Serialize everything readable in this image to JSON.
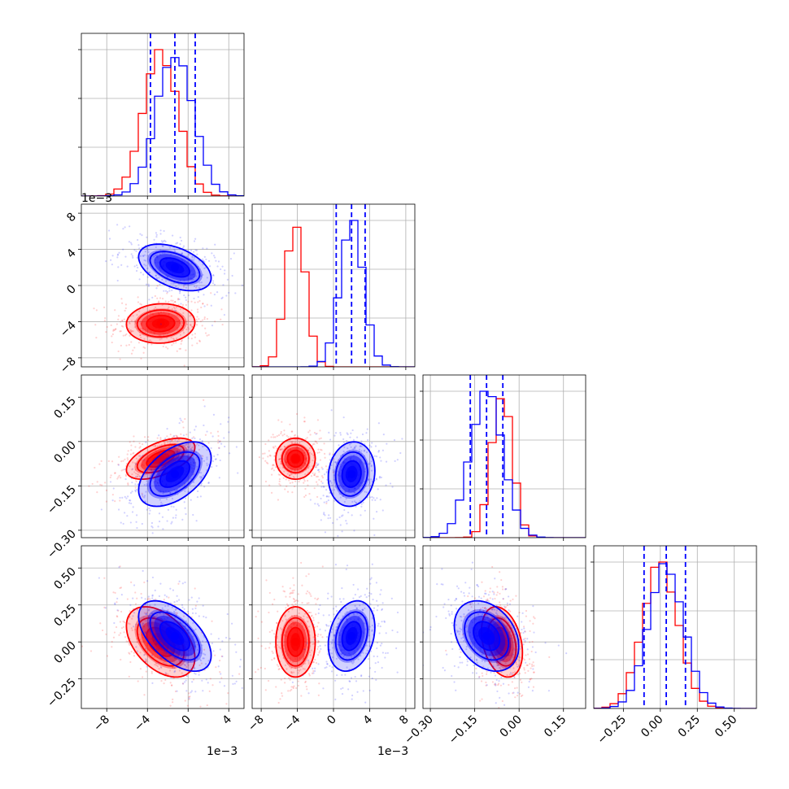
{
  "colors": {
    "red": "#ff0000",
    "blue": "#0000ff"
  },
  "chart_data": {
    "type": "corner",
    "grid": true,
    "offsets": {
      "x0": "1e−3",
      "y1": "1e−3",
      "x1": "1e−3"
    },
    "ticks": {
      "p0": [
        {
          "v": -0.008,
          "label": "−8"
        },
        {
          "v": -0.004,
          "label": "−4"
        },
        {
          "v": 0.0,
          "label": "0"
        },
        {
          "v": 0.004,
          "label": "4"
        }
      ],
      "p1": [
        {
          "v": -0.008,
          "label": "−8"
        },
        {
          "v": -0.004,
          "label": "−4"
        },
        {
          "v": 0.0,
          "label": "0"
        },
        {
          "v": 0.004,
          "label": "4"
        },
        {
          "v": 0.008,
          "label": "8"
        }
      ],
      "p2": [
        {
          "v": -0.3,
          "label": "−0.30"
        },
        {
          "v": -0.15,
          "label": "−0.15"
        },
        {
          "v": 0.0,
          "label": "0.00"
        },
        {
          "v": 0.15,
          "label": "0.15"
        }
      ],
      "p3": [
        {
          "v": -0.25,
          "label": "−0.25"
        },
        {
          "v": 0.0,
          "label": "0.00"
        },
        {
          "v": 0.25,
          "label": "0.25"
        },
        {
          "v": 0.5,
          "label": "0.50"
        }
      ]
    },
    "ranges": [
      [
        -0.0105,
        0.0055
      ],
      [
        -0.009,
        0.009
      ],
      [
        -0.325,
        0.225
      ],
      [
        -0.45,
        0.65
      ]
    ],
    "series": [
      {
        "color": "red",
        "mean": [
          -0.0027,
          -0.0042,
          -0.058,
          0.0
        ],
        "sigma": [
          0.0017,
          0.0011,
          0.035,
          0.12
        ],
        "corr": {
          "0-1": 0.05,
          "0-2": 0.55,
          "1-2": 0.0,
          "0-3": -0.45,
          "1-3": 0.0,
          "2-3": -0.3
        }
      },
      {
        "color": "blue",
        "mean": [
          -0.0013,
          0.002,
          -0.11,
          0.04
        ],
        "sigma": [
          0.0018,
          0.0013,
          0.055,
          0.12
        ],
        "corr": {
          "0-1": -0.45,
          "0-2": 0.5,
          "1-2": 0.1,
          "0-3": -0.55,
          "1-3": 0.25,
          "2-3": -0.3
        }
      }
    ],
    "quantiles": [
      [
        -0.0037,
        -0.0013,
        0.0007
      ],
      [
        0.0003,
        0.002,
        0.0035
      ],
      [
        -0.165,
        -0.11,
        -0.055
      ],
      [
        -0.11,
        0.04,
        0.17
      ]
    ]
  }
}
